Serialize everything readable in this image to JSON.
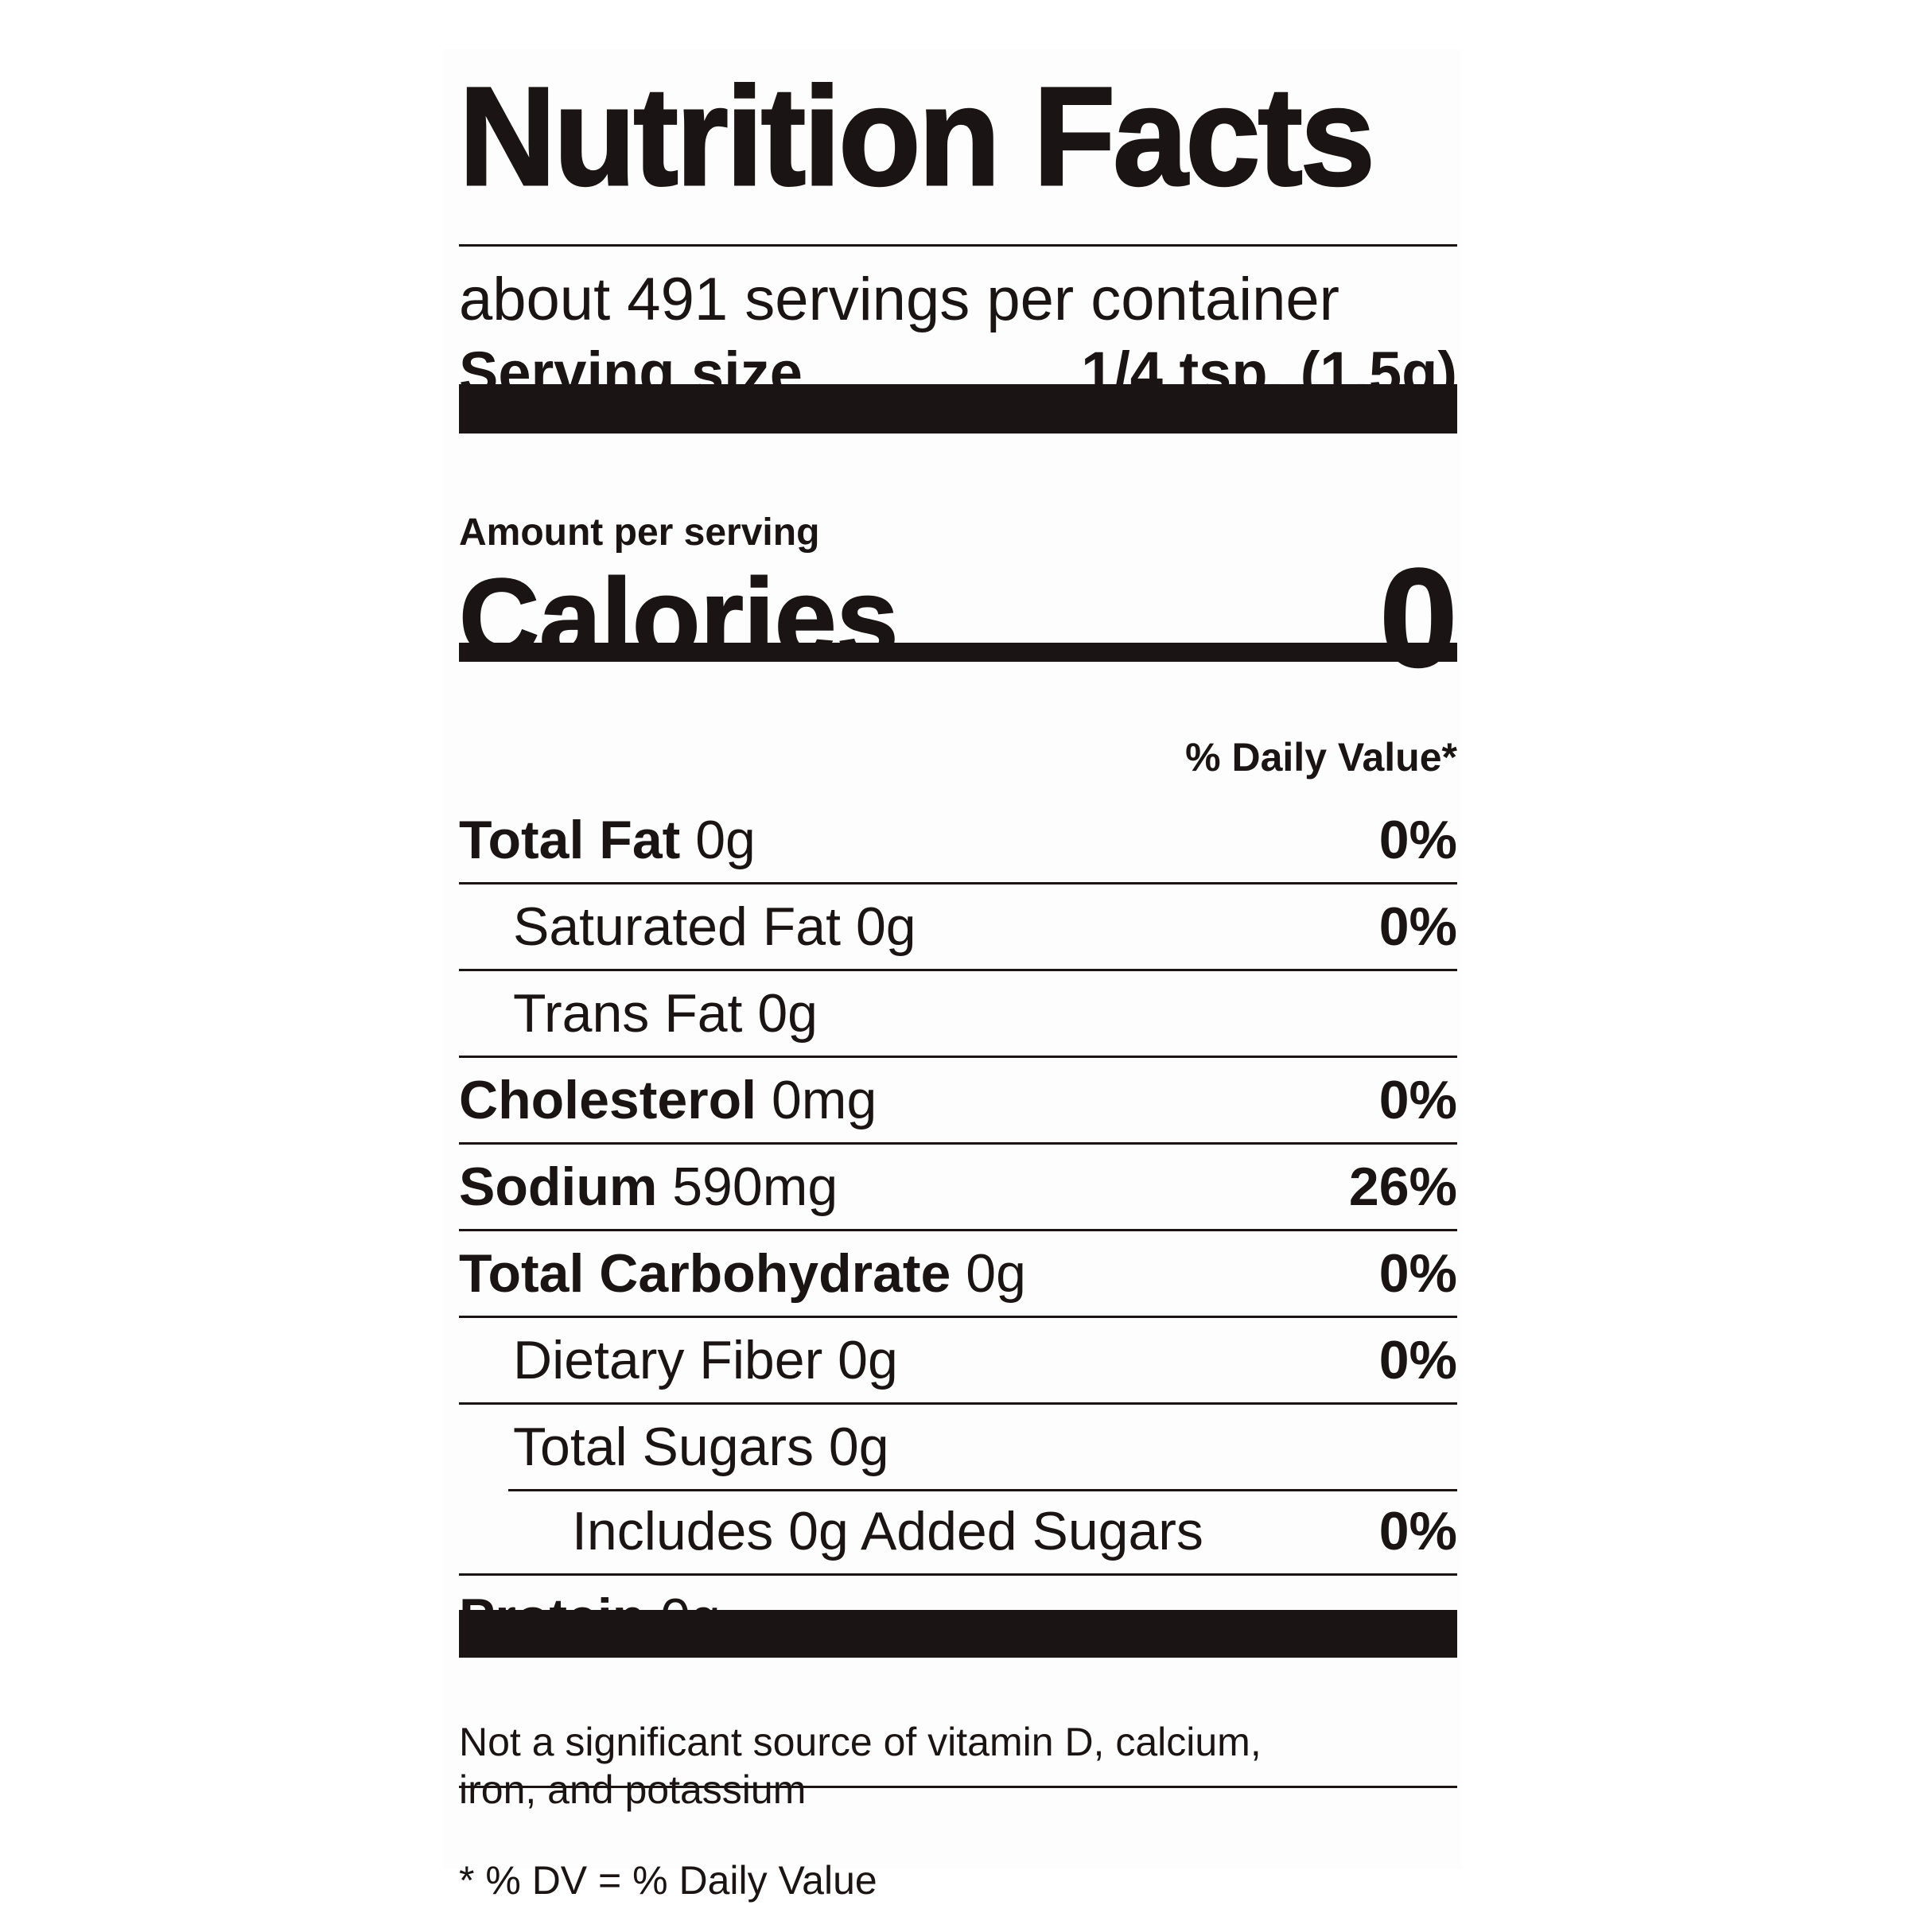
{
  "title": "Nutrition Facts",
  "servings_per_container": "about 491 servings per container",
  "serving_size": {
    "label": "Serving size",
    "value": "1/4 tsp. (1.5g)"
  },
  "amount_per_serving": "Amount per serving",
  "calories": {
    "label": "Calories",
    "value": "0"
  },
  "daily_value_header": "% Daily Value*",
  "nutrients": [
    {
      "name": "Total Fat",
      "amount": "0g",
      "dv": "0%"
    },
    {
      "name": "Saturated Fat",
      "amount": "0g",
      "dv": "0%"
    },
    {
      "name": "Trans Fat",
      "amount": "0g",
      "dv": ""
    },
    {
      "name": "Cholesterol",
      "amount": "0mg",
      "dv": "0%"
    },
    {
      "name": "Sodium",
      "amount": "590mg",
      "dv": "26%"
    },
    {
      "name": "Total Carbohydrate",
      "amount": "0g",
      "dv": "0%"
    },
    {
      "name": "Dietary Fiber",
      "amount": "0g",
      "dv": "0%"
    },
    {
      "name": "Total Sugars",
      "amount": "0g",
      "dv": ""
    },
    {
      "name": "Includes 0g Added Sugars",
      "amount": "",
      "dv": "0%"
    },
    {
      "name": "Protein",
      "amount": "0g",
      "dv": ""
    }
  ],
  "footnote": "Not a significant source of vitamin D, calcium, iron, and potassium",
  "dv_note": "* % DV = % Daily Value"
}
